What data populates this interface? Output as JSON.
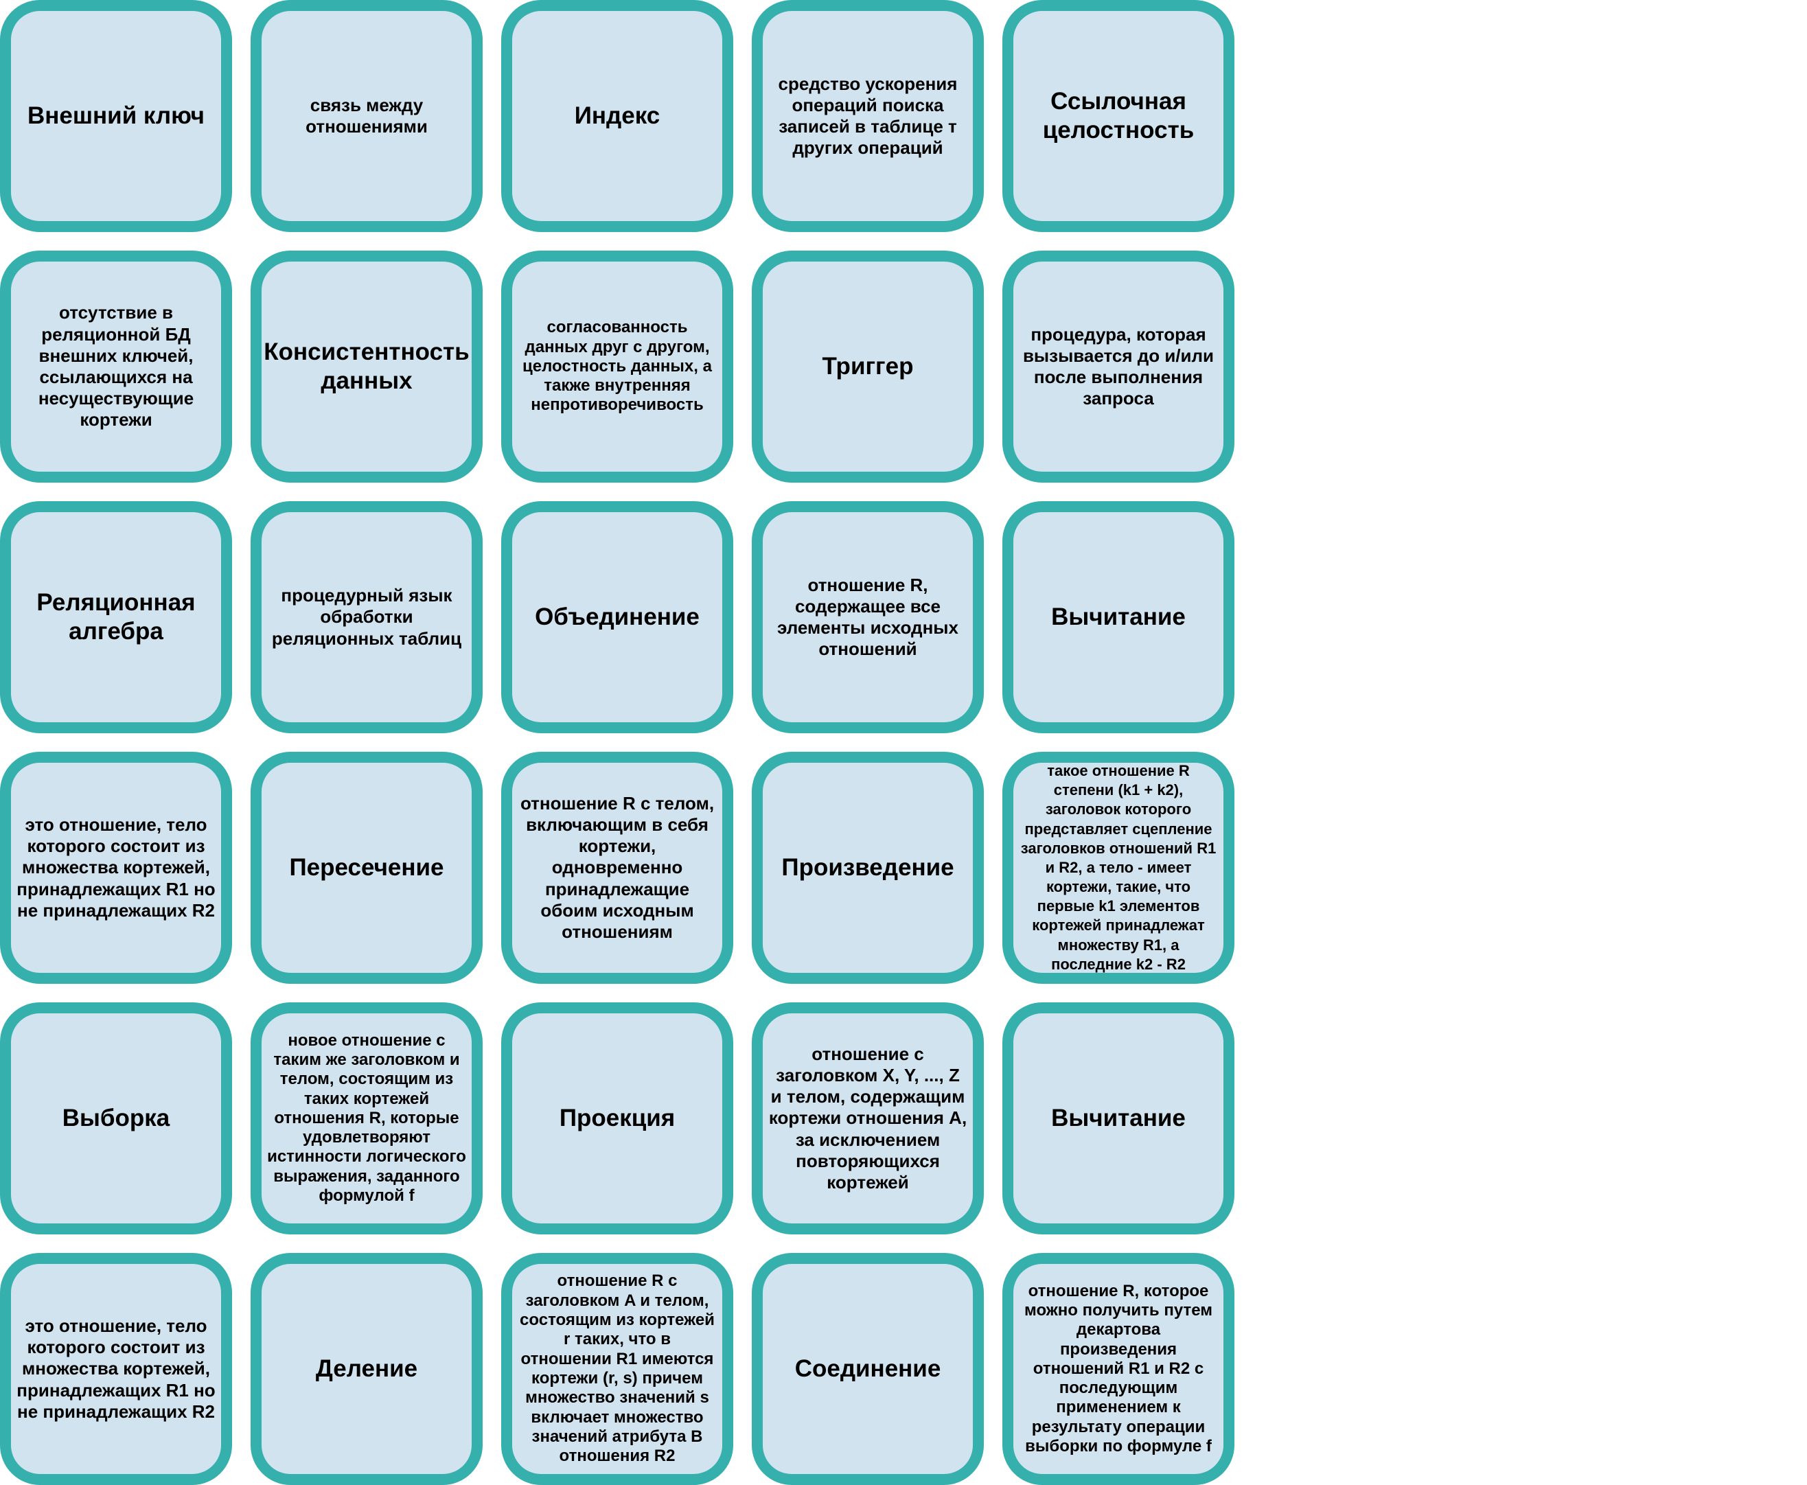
{
  "cards": [
    {
      "kind": "term",
      "text": "Внешний ключ"
    },
    {
      "kind": "def",
      "text": "связь между отношениями"
    },
    {
      "kind": "term",
      "text": "Индекс"
    },
    {
      "kind": "def",
      "text": "средство ускорения операций поиска записей в таблице т других операций"
    },
    {
      "kind": "term",
      "text": "Ссылочная целостность"
    },
    {
      "kind": "def",
      "text": "отсутствие в реляционной БД внешних ключей, ссылающихся на несуществующие кортежи"
    },
    {
      "kind": "term",
      "text": "Консистентность данных"
    },
    {
      "kind": "def",
      "text": "согласованность данных друг с другом, целостность данных, а также внутренняя непротиворечивость"
    },
    {
      "kind": "term",
      "text": "Триггер"
    },
    {
      "kind": "def",
      "text": "процедура, которая вызывается до и/или после выполнения запроса"
    },
    {
      "kind": "term",
      "text": "Реляционная алгебра"
    },
    {
      "kind": "def",
      "text": "процедурный язык обработки реляционных таблиц"
    },
    {
      "kind": "term",
      "text": "Объединение"
    },
    {
      "kind": "def",
      "text": "отношение R, содержащее все элементы исходных отношений"
    },
    {
      "kind": "term",
      "text": "Вычитание"
    },
    {
      "kind": "def",
      "text": "это отношение, тело которого состоит из множества кортежей, принадлежащих R1 но не принадлежащих R2"
    },
    {
      "kind": "term",
      "text": "Пересечение"
    },
    {
      "kind": "def",
      "text": "отношение R с телом, включающим в себя кортежи, одновременно принадлежащие обоим исходным отношениям"
    },
    {
      "kind": "term",
      "text": "Произведение"
    },
    {
      "kind": "def",
      "text": "такое отношение R степени (k1 + k2), заголовок которого представляет сцепление заголовков отношений R1 и R2, а тело - имеет кортежи, такие, что первые k1 элементов кортежей принадлежат множеству R1, а последние k2 - R2"
    },
    {
      "kind": "term",
      "text": "Выборка"
    },
    {
      "kind": "def",
      "text": "новое отношение с таким же заголовком и телом, состоящим из таких кортежей отношения R, которые удовлетворяют истинности логического выражения, заданного формулой f"
    },
    {
      "kind": "term",
      "text": "Проекция"
    },
    {
      "kind": "def",
      "text": "отношение с заголовком X, Y, ..., Z и телом, содержащим кортежи отношения A, за исключением повторяющихся кортежей"
    },
    {
      "kind": "term",
      "text": "Вычитание"
    },
    {
      "kind": "def",
      "text": "это отношение, тело которого состоит из множества кортежей, принадлежащих R1 но не принадлежащих R2"
    },
    {
      "kind": "term",
      "text": "Деление"
    },
    {
      "kind": "def",
      "text": "отношение R с заголовком A и телом, состоящим из кортежей r таких, что в отношении R1 имеются кортежи (r, s) причем множество значений s включает множество значений атрибута B отношения R2"
    },
    {
      "kind": "term",
      "text": "Соединение"
    },
    {
      "kind": "def",
      "text": "отношение R, которое можно получить путем декартова произведения отношений R1 и R2 с последующим применением к результату операции выборки по формуле f"
    }
  ]
}
